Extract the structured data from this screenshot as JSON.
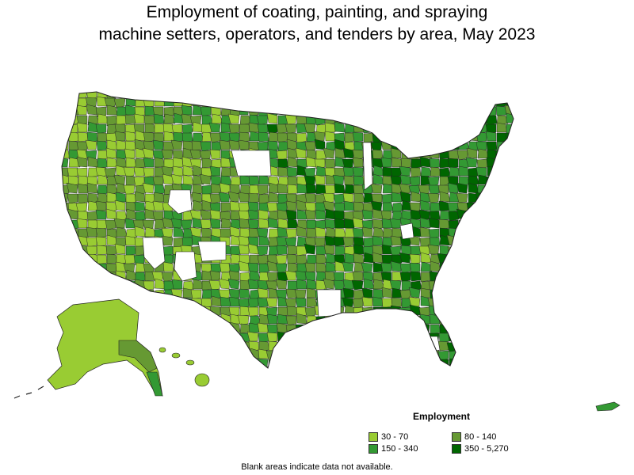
{
  "title": {
    "line1": "Employment of coating, painting, and spraying",
    "line2": "machine setters, operators, and tenders by area, May 2023"
  },
  "legend": {
    "title": "Employment",
    "items": [
      {
        "label": "30 - 70",
        "color": "#99cc33"
      },
      {
        "label": "80 - 140",
        "color": "#669933"
      },
      {
        "label": "150 - 340",
        "color": "#339933"
      },
      {
        "label": "350 - 5,270",
        "color": "#006600"
      }
    ]
  },
  "footnote": "Blank areas indicate data not available.",
  "colors": {
    "border": "#222222",
    "no_data": "#ffffff",
    "c1": "#99cc33",
    "c2": "#669933",
    "c3": "#339933",
    "c4": "#006600"
  }
}
